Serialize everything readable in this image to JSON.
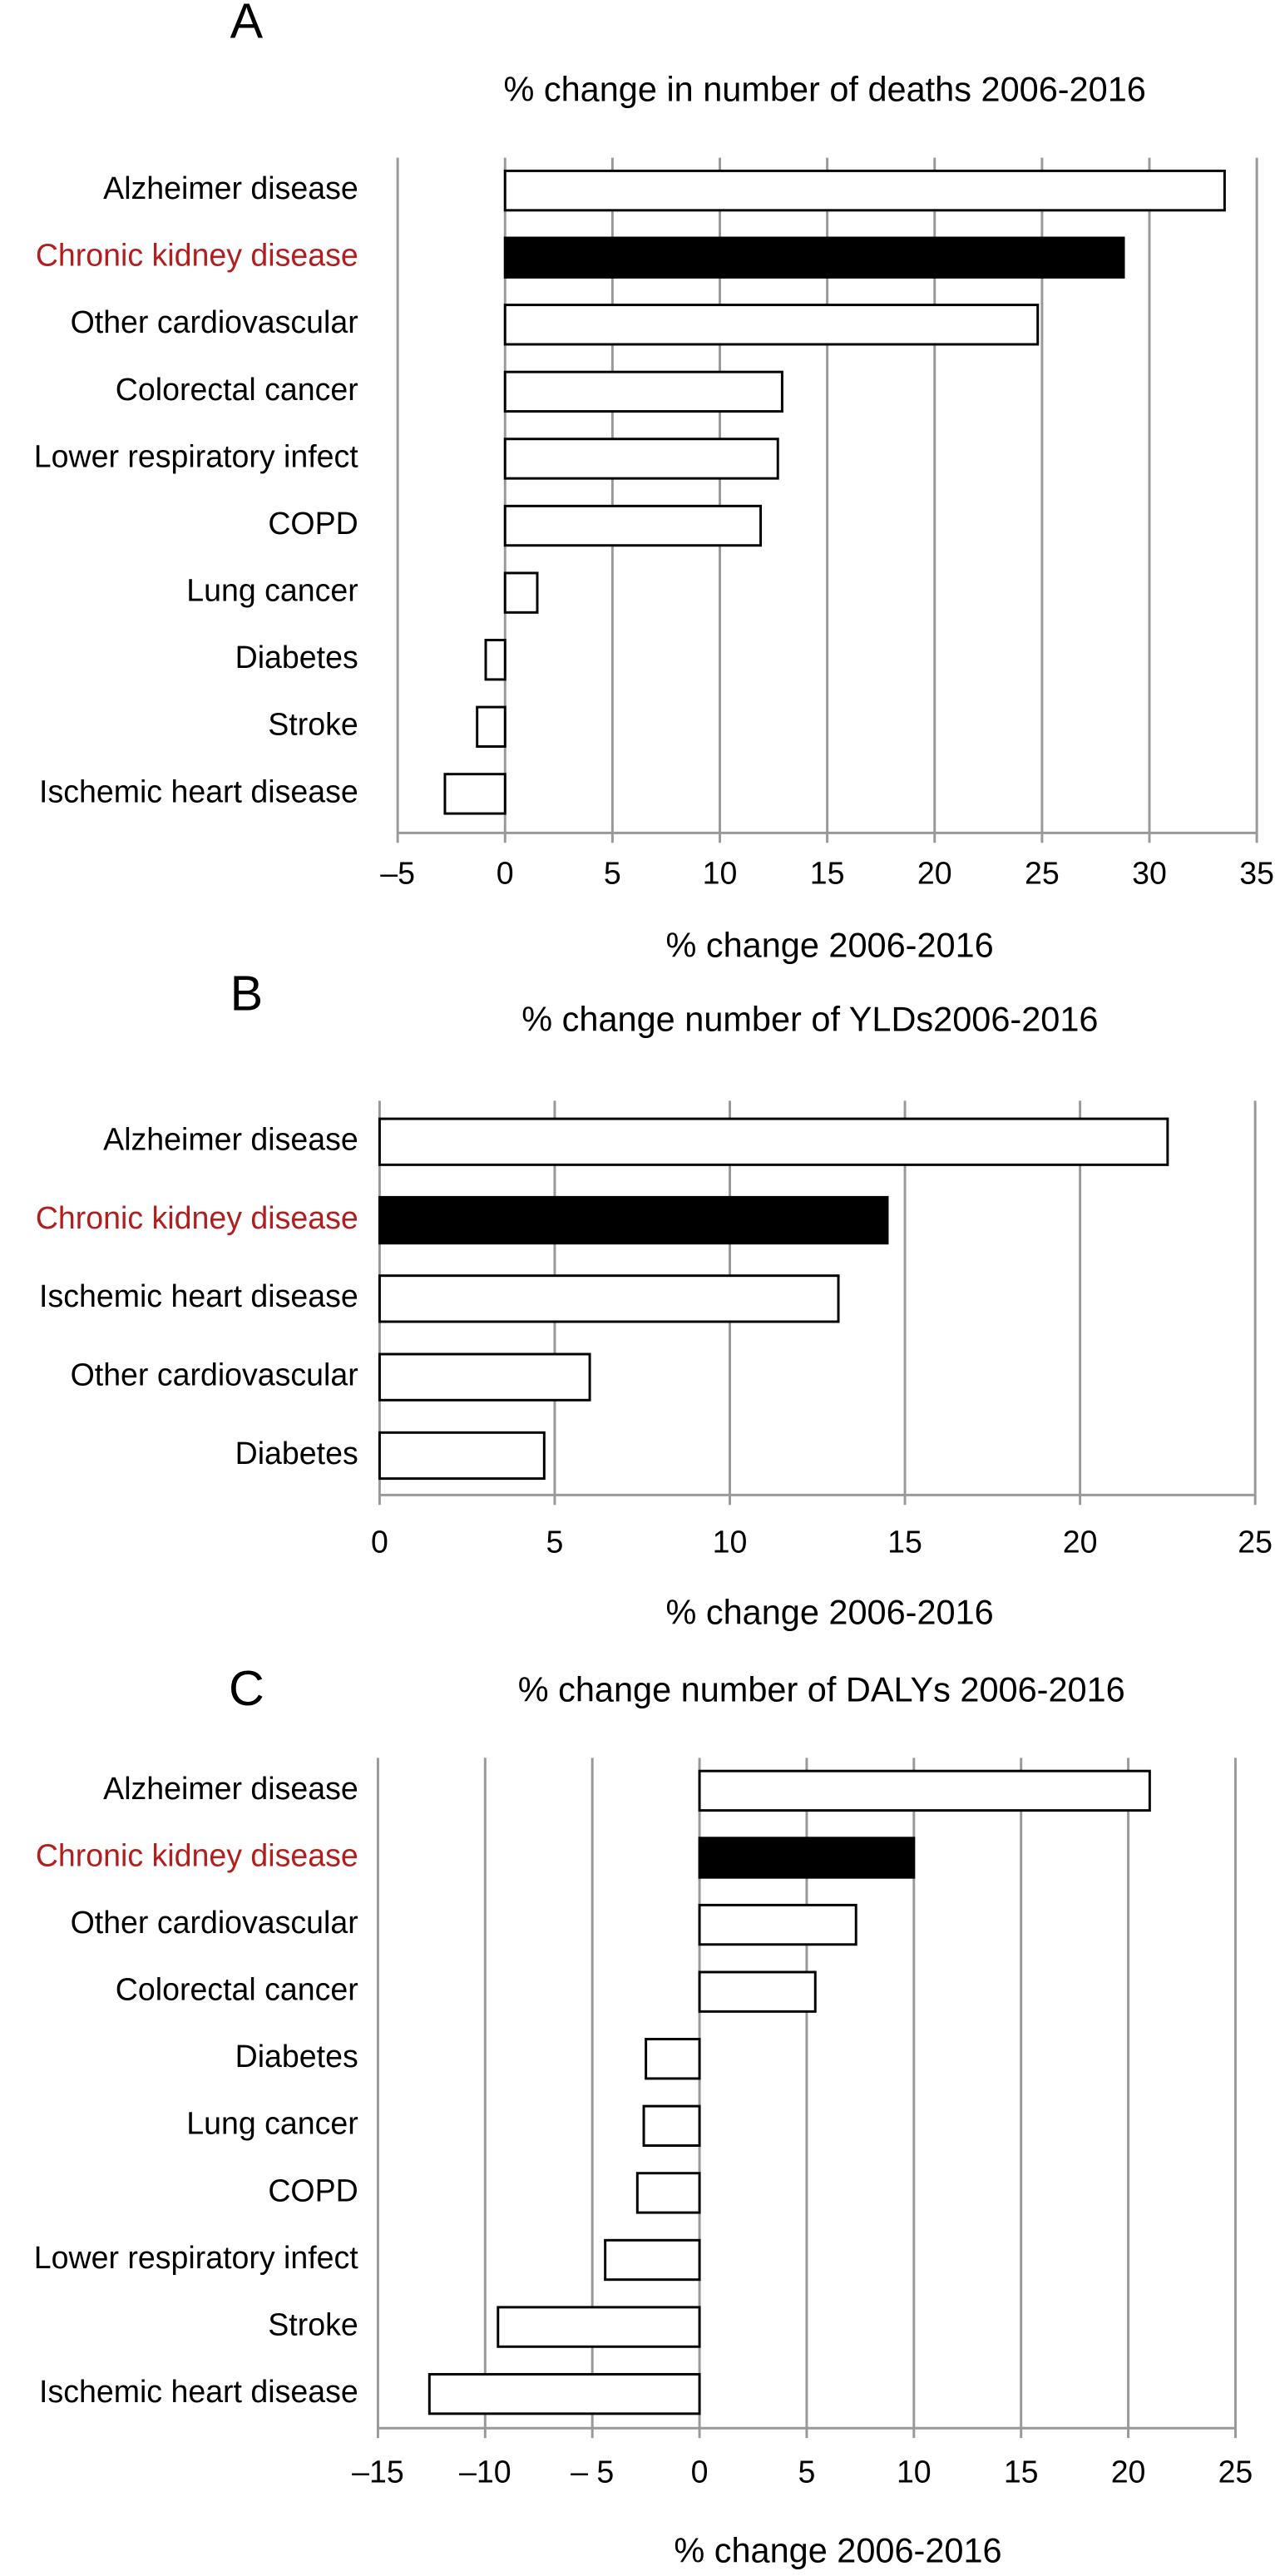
{
  "chart_data": [
    {
      "type": "bar",
      "orientation": "horizontal",
      "panel": "A",
      "title": "% change in number of deaths 2006-2016",
      "x_label": "% change 2006-2016",
      "categories": [
        "Alzheimer disease",
        "Chronic kidney disease",
        "Other cardiovascular",
        "Colorectal cancer",
        "Lower respiratory infect",
        "COPD",
        "Lung cancer",
        "Diabetes",
        "Stroke",
        "Ischemic heart disease"
      ],
      "values": [
        33.5,
        28.8,
        24.8,
        12.9,
        12.7,
        11.9,
        1.5,
        -0.9,
        -1.3,
        -2.8
      ],
      "bar_colors": [
        "#ffffff",
        "#000000",
        "#ffffff",
        "#ffffff",
        "#ffffff",
        "#ffffff",
        "#ffffff",
        "#ffffff",
        "#ffffff",
        "#ffffff"
      ],
      "label_colors": [
        "#000000",
        "#b21e1e",
        "#000000",
        "#000000",
        "#000000",
        "#000000",
        "#000000",
        "#000000",
        "#000000",
        "#000000"
      ],
      "xlim": [
        -5,
        35
      ],
      "xticks": [
        {
          "value": -5,
          "label": "–5"
        },
        0,
        5,
        10,
        15,
        20,
        25,
        30,
        35
      ],
      "grid": true
    },
    {
      "type": "bar",
      "orientation": "horizontal",
      "panel": "B",
      "title": "% change number of YLDs2006-2016",
      "x_label": "% change 2006-2016",
      "categories": [
        "Alzheimer disease",
        "Chronic kidney disease",
        "Ischemic heart disease",
        "Other cardiovascular",
        "Diabetes"
      ],
      "values": [
        22.5,
        14.5,
        13.1,
        6.0,
        4.7
      ],
      "bar_colors": [
        "#ffffff",
        "#000000",
        "#ffffff",
        "#ffffff",
        "#ffffff"
      ],
      "label_colors": [
        "#000000",
        "#b21e1e",
        "#000000",
        "#000000",
        "#000000"
      ],
      "xlim": [
        0,
        25
      ],
      "xticks": [
        0,
        5,
        10,
        15,
        20,
        25
      ],
      "grid": true
    },
    {
      "type": "bar",
      "orientation": "horizontal",
      "panel": "C",
      "title": "% change number of DALYs 2006-2016",
      "x_label": "% change 2006-2016",
      "categories": [
        "Alzheimer disease",
        "Chronic kidney disease",
        "Other cardiovascular",
        "Colorectal cancer",
        "Diabetes",
        "Lung cancer",
        "COPD",
        "Lower respiratory infect",
        "Stroke",
        "Ischemic heart disease"
      ],
      "values": [
        21.0,
        10.0,
        7.3,
        5.4,
        -2.5,
        -2.6,
        -2.9,
        -4.4,
        -9.4,
        -12.6
      ],
      "bar_colors": [
        "#ffffff",
        "#000000",
        "#ffffff",
        "#ffffff",
        "#ffffff",
        "#ffffff",
        "#ffffff",
        "#ffffff",
        "#ffffff",
        "#ffffff"
      ],
      "label_colors": [
        "#000000",
        "#b21e1e",
        "#000000",
        "#000000",
        "#000000",
        "#000000",
        "#000000",
        "#000000",
        "#000000",
        "#000000"
      ],
      "xlim": [
        -15,
        25
      ],
      "xticks": [
        {
          "value": -15,
          "label": "–15"
        },
        {
          "value": -10,
          "label": "–10"
        },
        {
          "value": -5,
          "label": "– 5"
        },
        0,
        5,
        10,
        15,
        20,
        25
      ],
      "grid": true
    }
  ]
}
